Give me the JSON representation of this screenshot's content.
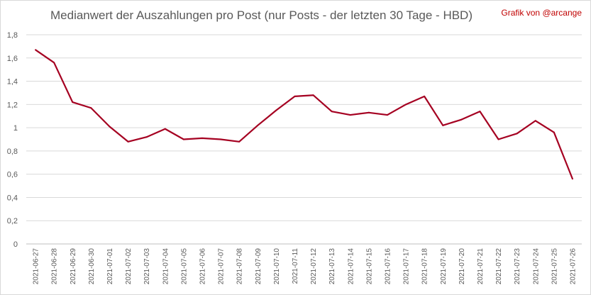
{
  "chart_data": {
    "type": "line",
    "title": "Medianwert der Auszahlungen pro Post (nur Posts - der letzten 30 Tage - HBD)",
    "credit": "Grafik von @arcange",
    "xlabel": "",
    "ylabel": "",
    "ylim": [
      0,
      1.8
    ],
    "yticks": [
      "0",
      "0,2",
      "0,4",
      "0,6",
      "0,8",
      "1",
      "1,2",
      "1,4",
      "1,6",
      "1,8"
    ],
    "grid": true,
    "line_color": "#a50021",
    "categories": [
      "2021-06-27",
      "2021-06-28",
      "2021-06-29",
      "2021-06-30",
      "2021-07-01",
      "2021-07-02",
      "2021-07-03",
      "2021-07-04",
      "2021-07-05",
      "2021-07-06",
      "2021-07-07",
      "2021-07-08",
      "2021-07-09",
      "2021-07-10",
      "2021-07-11",
      "2021-07-12",
      "2021-07-13",
      "2021-07-14",
      "2021-07-15",
      "2021-07-16",
      "2021-07-17",
      "2021-07-18",
      "2021-07-19",
      "2021-07-20",
      "2021-07-21",
      "2021-07-22",
      "2021-07-23",
      "2021-07-24",
      "2021-07-25",
      "2021-07-26"
    ],
    "values": [
      1.67,
      1.56,
      1.22,
      1.17,
      1.01,
      0.88,
      0.92,
      0.99,
      0.9,
      0.91,
      0.9,
      0.88,
      1.02,
      1.15,
      1.27,
      1.28,
      1.14,
      1.11,
      1.13,
      1.11,
      1.2,
      1.27,
      1.02,
      1.07,
      1.14,
      0.9,
      0.95,
      1.06,
      0.96,
      0.56
    ]
  }
}
